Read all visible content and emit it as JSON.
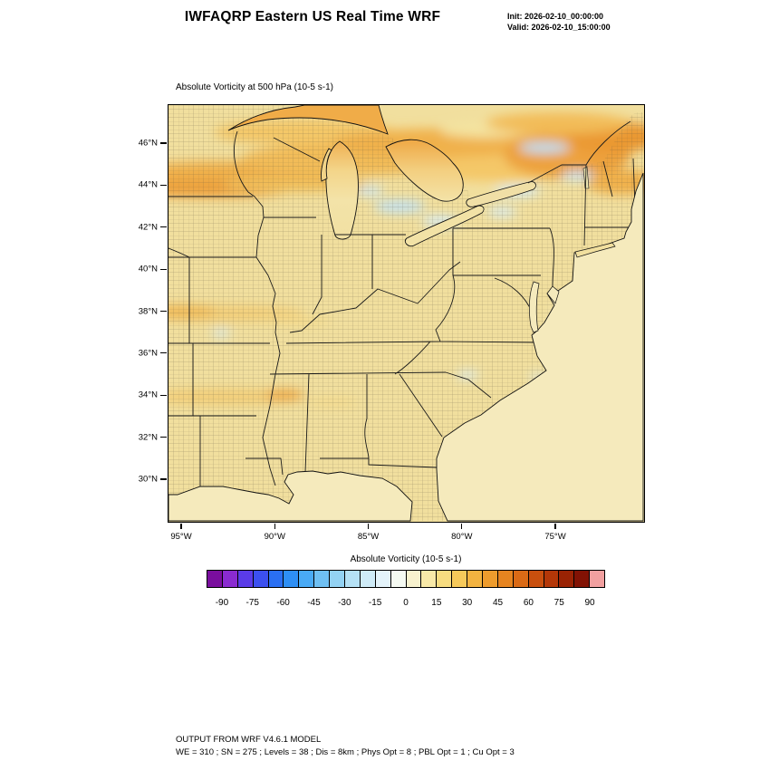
{
  "header": {
    "title": "IWFAQRP Eastern US Real Time WRF",
    "init_label": "Init: 2026-02-10_00:00:00",
    "valid_label": "Valid: 2026-02-10_15:00:00"
  },
  "map": {
    "title": "Absolute Vorticity at 500 hPa  (10-5 s-1)",
    "lat_ticks": [
      "46°N",
      "44°N",
      "42°N",
      "40°N",
      "38°N",
      "36°N",
      "34°N",
      "32°N",
      "30°N"
    ],
    "lon_ticks": [
      "95°W",
      "90°W",
      "85°W",
      "80°W",
      "75°W"
    ]
  },
  "colorbar": {
    "title": "Absolute Vorticity  (10-5 s-1)",
    "ticks": [
      "-90",
      "-75",
      "-60",
      "-45",
      "-30",
      "-15",
      "0",
      "15",
      "30",
      "45",
      "60",
      "75",
      "90"
    ],
    "colors": [
      "#7A0E9E",
      "#8A2BD0",
      "#5A3BE8",
      "#3C50F0",
      "#2A6FF2",
      "#2E8FF5",
      "#49AAF5",
      "#6FC0F3",
      "#93D2F3",
      "#B5E1F5",
      "#CFEBF7",
      "#E4F3FA",
      "#F5FAF2",
      "#F8F2CE",
      "#F8E9A8",
      "#F7DC80",
      "#F6C95A",
      "#F3B340",
      "#EE9C2D",
      "#E68420",
      "#DA6A16",
      "#C94F0E",
      "#B43708",
      "#9A2304",
      "#821204",
      "#F2A0A0"
    ]
  },
  "footer": {
    "line1": "OUTPUT FROM WRF V4.6.1 MODEL",
    "line2": "WE = 310 ; SN = 275 ; Levels = 38 ; Dis = 8km ; Phys Opt = 8 ; PBL Opt = 1 ; Cu Opt = 3"
  },
  "chart_data": {
    "type": "heatmap",
    "title": "Absolute Vorticity at 500 hPa (10-5 s-1)",
    "region_axes": {
      "lat_tick_labels": [
        "46°N",
        "44°N",
        "42°N",
        "40°N",
        "38°N",
        "36°N",
        "34°N",
        "32°N",
        "30°N"
      ],
      "lon_tick_labels": [
        "95°W",
        "90°W",
        "85°W",
        "80°W",
        "75°W"
      ]
    },
    "colorbar_tick_values": [
      -90,
      -75,
      -60,
      -45,
      -30,
      -15,
      0,
      15,
      30,
      45,
      60,
      75,
      90
    ],
    "units": "10-5 s-1"
  }
}
